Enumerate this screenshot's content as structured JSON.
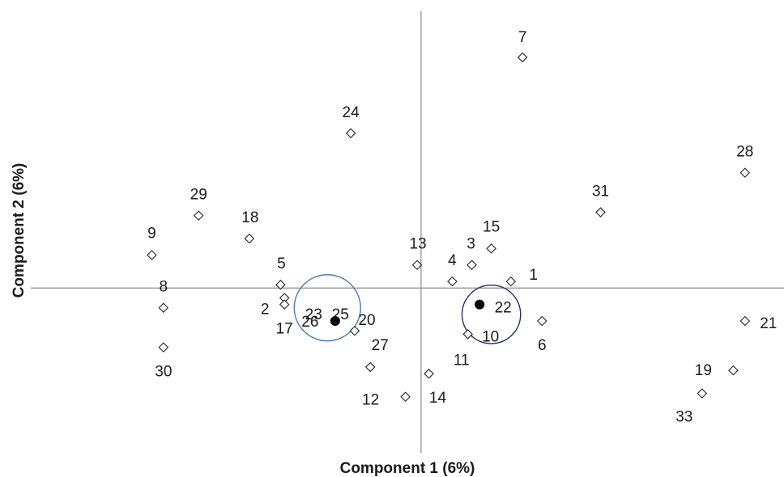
{
  "chart_data": {
    "type": "scatter",
    "xlabel": "Component 1 (6%)",
    "ylabel": "Component 2 (6%)",
    "xlim": [
      -1.0,
      0.93
    ],
    "ylim": [
      -0.5,
      0.84
    ],
    "grid": false,
    "points": [
      {
        "label": "1",
        "x": 0.23,
        "y": 0.02,
        "marker": "diamond"
      },
      {
        "label": "2",
        "x": -0.35,
        "y": -0.03,
        "marker": "diamond"
      },
      {
        "label": "3",
        "x": 0.13,
        "y": 0.07,
        "marker": "diamond"
      },
      {
        "label": "4",
        "x": 0.08,
        "y": 0.02,
        "marker": "diamond"
      },
      {
        "label": "5",
        "x": -0.36,
        "y": 0.01,
        "marker": "diamond"
      },
      {
        "label": "6",
        "x": 0.31,
        "y": -0.1,
        "marker": "diamond"
      },
      {
        "label": "7",
        "x": 0.26,
        "y": 0.7,
        "marker": "diamond"
      },
      {
        "label": "8",
        "x": -0.66,
        "y": -0.06,
        "marker": "diamond"
      },
      {
        "label": "9",
        "x": -0.69,
        "y": 0.1,
        "marker": "diamond"
      },
      {
        "label": "10",
        "x": 0.12,
        "y": -0.14,
        "marker": "diamond"
      },
      {
        "label": "11",
        "x": 0.12,
        "y": -0.14,
        "marker": "none"
      },
      {
        "label": "12",
        "x": -0.04,
        "y": -0.33,
        "marker": "diamond"
      },
      {
        "label": "13",
        "x": -0.01,
        "y": 0.07,
        "marker": "diamond"
      },
      {
        "label": "14",
        "x": 0.02,
        "y": -0.26,
        "marker": "diamond"
      },
      {
        "label": "15",
        "x": 0.18,
        "y": 0.12,
        "marker": "diamond"
      },
      {
        "label": "17",
        "x": -0.35,
        "y": -0.05,
        "marker": "diamond"
      },
      {
        "label": "18",
        "x": -0.44,
        "y": 0.15,
        "marker": "diamond"
      },
      {
        "label": "19",
        "x": 0.8,
        "y": -0.25,
        "marker": "diamond"
      },
      {
        "label": "20",
        "x": -0.17,
        "y": -0.13,
        "marker": "diamond"
      },
      {
        "label": "21",
        "x": 0.83,
        "y": -0.1,
        "marker": "diamond"
      },
      {
        "label": "22",
        "x": 0.15,
        "y": -0.05,
        "marker": "filled-circle"
      },
      {
        "label": "23",
        "x": -0.24,
        "y": -0.08,
        "marker": "none"
      },
      {
        "label": "24",
        "x": -0.18,
        "y": 0.47,
        "marker": "diamond"
      },
      {
        "label": "25",
        "x": -0.24,
        "y": -0.08,
        "marker": "none"
      },
      {
        "label": "26",
        "x": -0.22,
        "y": -0.1,
        "marker": "filled-circle"
      },
      {
        "label": "27",
        "x": -0.13,
        "y": -0.24,
        "marker": "diamond"
      },
      {
        "label": "28",
        "x": 0.83,
        "y": 0.35,
        "marker": "diamond"
      },
      {
        "label": "29",
        "x": -0.57,
        "y": 0.22,
        "marker": "diamond"
      },
      {
        "label": "30",
        "x": -0.66,
        "y": -0.18,
        "marker": "diamond"
      },
      {
        "label": "31",
        "x": 0.46,
        "y": 0.23,
        "marker": "diamond"
      },
      {
        "label": "33",
        "x": 0.72,
        "y": -0.32,
        "marker": "diamond"
      }
    ],
    "circles": [
      {
        "around": "23-26",
        "cx": -0.24,
        "cy": -0.06,
        "r": 0.085,
        "color": "#4a7ab0"
      },
      {
        "around": "22-10",
        "cx": 0.18,
        "cy": -0.08,
        "r": 0.075,
        "color": "#1f2f6b"
      }
    ]
  }
}
